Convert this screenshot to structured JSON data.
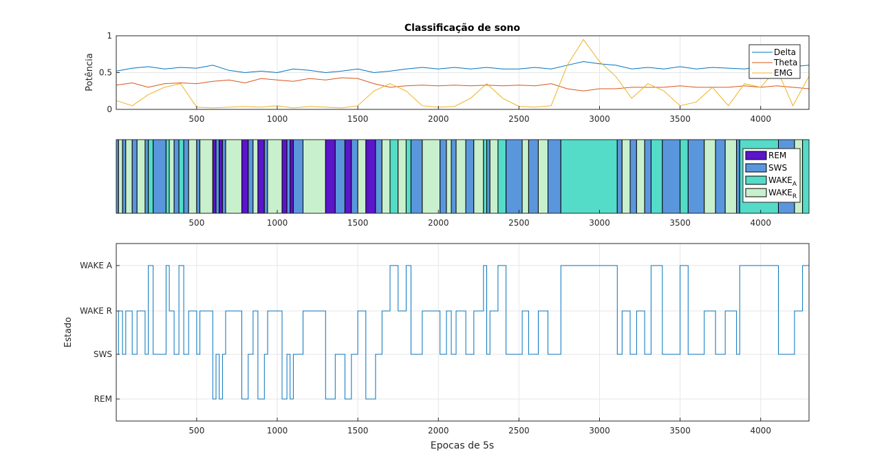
{
  "chart_data": [
    {
      "type": "line",
      "title": "Classificação de sono",
      "ylabel": "Potência",
      "xlabel": "",
      "xlim": [
        1,
        4300
      ],
      "ylim": [
        0,
        1
      ],
      "xticks": [
        500,
        1000,
        1500,
        2000,
        2500,
        3000,
        3500,
        4000
      ],
      "yticks": [
        0,
        0.5,
        1
      ],
      "grid": true,
      "legend_position": "top-right",
      "colors": [
        "#0072bd",
        "#d95319",
        "#edb120"
      ],
      "series": [
        {
          "name": "Delta",
          "x": [
            1,
            100,
            200,
            300,
            400,
            500,
            600,
            700,
            800,
            900,
            1000,
            1100,
            1200,
            1300,
            1400,
            1500,
            1600,
            1700,
            1800,
            1900,
            2000,
            2100,
            2200,
            2300,
            2400,
            2500,
            2600,
            2700,
            2800,
            2900,
            3000,
            3100,
            3200,
            3300,
            3400,
            3500,
            3600,
            3700,
            3800,
            3900,
            4000,
            4100,
            4200,
            4300
          ],
          "y": [
            0.52,
            0.56,
            0.58,
            0.55,
            0.57,
            0.56,
            0.6,
            0.53,
            0.5,
            0.52,
            0.5,
            0.55,
            0.53,
            0.5,
            0.52,
            0.55,
            0.5,
            0.52,
            0.55,
            0.57,
            0.55,
            0.57,
            0.55,
            0.57,
            0.55,
            0.55,
            0.57,
            0.55,
            0.6,
            0.65,
            0.62,
            0.6,
            0.55,
            0.57,
            0.55,
            0.58,
            0.55,
            0.57,
            0.56,
            0.55,
            0.58,
            0.56,
            0.58,
            0.6
          ]
        },
        {
          "name": "Theta",
          "x": [
            1,
            100,
            200,
            300,
            400,
            500,
            600,
            700,
            800,
            900,
            1000,
            1100,
            1200,
            1300,
            1400,
            1500,
            1600,
            1700,
            1800,
            1900,
            2000,
            2100,
            2200,
            2300,
            2400,
            2500,
            2600,
            2700,
            2800,
            2900,
            3000,
            3100,
            3200,
            3300,
            3400,
            3500,
            3600,
            3700,
            3800,
            3900,
            4000,
            4100,
            4200,
            4300
          ],
          "y": [
            0.33,
            0.36,
            0.3,
            0.35,
            0.36,
            0.35,
            0.38,
            0.4,
            0.36,
            0.42,
            0.4,
            0.38,
            0.42,
            0.4,
            0.43,
            0.42,
            0.35,
            0.3,
            0.32,
            0.33,
            0.32,
            0.33,
            0.32,
            0.33,
            0.32,
            0.33,
            0.32,
            0.35,
            0.28,
            0.25,
            0.28,
            0.28,
            0.3,
            0.3,
            0.3,
            0.32,
            0.3,
            0.3,
            0.3,
            0.32,
            0.3,
            0.32,
            0.3,
            0.28
          ]
        },
        {
          "name": "EMG",
          "x": [
            1,
            100,
            200,
            300,
            400,
            500,
            600,
            700,
            800,
            900,
            1000,
            1100,
            1200,
            1300,
            1400,
            1500,
            1600,
            1700,
            1800,
            1900,
            2000,
            2100,
            2200,
            2300,
            2400,
            2500,
            2600,
            2700,
            2800,
            2900,
            3000,
            3100,
            3200,
            3300,
            3400,
            3500,
            3600,
            3700,
            3800,
            3900,
            4000,
            4100,
            4200,
            4300
          ],
          "y": [
            0.12,
            0.05,
            0.2,
            0.3,
            0.35,
            0.03,
            0.02,
            0.03,
            0.04,
            0.03,
            0.05,
            0.02,
            0.04,
            0.03,
            0.02,
            0.05,
            0.25,
            0.35,
            0.25,
            0.05,
            0.03,
            0.04,
            0.15,
            0.35,
            0.15,
            0.04,
            0.03,
            0.05,
            0.6,
            0.95,
            0.65,
            0.45,
            0.15,
            0.35,
            0.25,
            0.05,
            0.1,
            0.3,
            0.05,
            0.35,
            0.3,
            0.55,
            0.05,
            0.45
          ]
        }
      ]
    },
    {
      "type": "bar",
      "xlabel": "",
      "xlim": [
        1,
        4300
      ],
      "xticks": [
        500,
        1000,
        1500,
        2000,
        2500,
        3000,
        3500,
        4000
      ],
      "legend_position": "top-right",
      "legend": [
        {
          "label": "REM",
          "sub": "",
          "color": "#5a16c8"
        },
        {
          "label": "SWS",
          "sub": "",
          "color": "#5a96dc"
        },
        {
          "label": "WAKE",
          "sub": "A",
          "color": "#54dcc8"
        },
        {
          "label": "WAKE",
          "sub": "R",
          "color": "#c8f0cc"
        }
      ],
      "segments": [
        {
          "start": 1,
          "end": 15,
          "state": "SWS"
        },
        {
          "start": 15,
          "end": 40,
          "state": "WAKE R"
        },
        {
          "start": 40,
          "end": 60,
          "state": "SWS"
        },
        {
          "start": 60,
          "end": 100,
          "state": "WAKE R"
        },
        {
          "start": 100,
          "end": 130,
          "state": "SWS"
        },
        {
          "start": 130,
          "end": 180,
          "state": "WAKE R"
        },
        {
          "start": 180,
          "end": 200,
          "state": "SWS"
        },
        {
          "start": 200,
          "end": 230,
          "state": "WAKE A"
        },
        {
          "start": 230,
          "end": 310,
          "state": "SWS"
        },
        {
          "start": 310,
          "end": 330,
          "state": "WAKE A"
        },
        {
          "start": 330,
          "end": 360,
          "state": "WAKE R"
        },
        {
          "start": 360,
          "end": 390,
          "state": "SWS"
        },
        {
          "start": 390,
          "end": 420,
          "state": "WAKE A"
        },
        {
          "start": 420,
          "end": 450,
          "state": "SWS"
        },
        {
          "start": 450,
          "end": 500,
          "state": "WAKE R"
        },
        {
          "start": 500,
          "end": 520,
          "state": "SWS"
        },
        {
          "start": 520,
          "end": 600,
          "state": "WAKE R"
        },
        {
          "start": 600,
          "end": 620,
          "state": "REM"
        },
        {
          "start": 620,
          "end": 640,
          "state": "SWS"
        },
        {
          "start": 640,
          "end": 660,
          "state": "REM"
        },
        {
          "start": 660,
          "end": 680,
          "state": "SWS"
        },
        {
          "start": 680,
          "end": 780,
          "state": "WAKE R"
        },
        {
          "start": 780,
          "end": 820,
          "state": "REM"
        },
        {
          "start": 820,
          "end": 850,
          "state": "SWS"
        },
        {
          "start": 850,
          "end": 880,
          "state": "WAKE R"
        },
        {
          "start": 880,
          "end": 920,
          "state": "REM"
        },
        {
          "start": 920,
          "end": 940,
          "state": "SWS"
        },
        {
          "start": 940,
          "end": 1030,
          "state": "WAKE R"
        },
        {
          "start": 1030,
          "end": 1060,
          "state": "REM"
        },
        {
          "start": 1060,
          "end": 1080,
          "state": "SWS"
        },
        {
          "start": 1080,
          "end": 1100,
          "state": "REM"
        },
        {
          "start": 1100,
          "end": 1160,
          "state": "SWS"
        },
        {
          "start": 1160,
          "end": 1300,
          "state": "WAKE R"
        },
        {
          "start": 1300,
          "end": 1360,
          "state": "REM"
        },
        {
          "start": 1360,
          "end": 1420,
          "state": "SWS"
        },
        {
          "start": 1420,
          "end": 1460,
          "state": "REM"
        },
        {
          "start": 1460,
          "end": 1500,
          "state": "SWS"
        },
        {
          "start": 1500,
          "end": 1550,
          "state": "WAKE R"
        },
        {
          "start": 1550,
          "end": 1610,
          "state": "REM"
        },
        {
          "start": 1610,
          "end": 1650,
          "state": "SWS"
        },
        {
          "start": 1650,
          "end": 1700,
          "state": "WAKE R"
        },
        {
          "start": 1700,
          "end": 1750,
          "state": "WAKE A"
        },
        {
          "start": 1750,
          "end": 1800,
          "state": "WAKE R"
        },
        {
          "start": 1800,
          "end": 1830,
          "state": "WAKE A"
        },
        {
          "start": 1830,
          "end": 1900,
          "state": "SWS"
        },
        {
          "start": 1900,
          "end": 2010,
          "state": "WAKE R"
        },
        {
          "start": 2010,
          "end": 2050,
          "state": "SWS"
        },
        {
          "start": 2050,
          "end": 2080,
          "state": "WAKE R"
        },
        {
          "start": 2080,
          "end": 2110,
          "state": "SWS"
        },
        {
          "start": 2110,
          "end": 2170,
          "state": "WAKE R"
        },
        {
          "start": 2170,
          "end": 2220,
          "state": "SWS"
        },
        {
          "start": 2220,
          "end": 2280,
          "state": "WAKE R"
        },
        {
          "start": 2280,
          "end": 2300,
          "state": "WAKE A"
        },
        {
          "start": 2300,
          "end": 2320,
          "state": "SWS"
        },
        {
          "start": 2320,
          "end": 2370,
          "state": "WAKE R"
        },
        {
          "start": 2370,
          "end": 2420,
          "state": "WAKE A"
        },
        {
          "start": 2420,
          "end": 2520,
          "state": "SWS"
        },
        {
          "start": 2520,
          "end": 2560,
          "state": "WAKE R"
        },
        {
          "start": 2560,
          "end": 2620,
          "state": "SWS"
        },
        {
          "start": 2620,
          "end": 2680,
          "state": "WAKE R"
        },
        {
          "start": 2680,
          "end": 2760,
          "state": "SWS"
        },
        {
          "start": 2760,
          "end": 3110,
          "state": "WAKE A"
        },
        {
          "start": 3110,
          "end": 3140,
          "state": "SWS"
        },
        {
          "start": 3140,
          "end": 3190,
          "state": "WAKE R"
        },
        {
          "start": 3190,
          "end": 3230,
          "state": "SWS"
        },
        {
          "start": 3230,
          "end": 3280,
          "state": "WAKE R"
        },
        {
          "start": 3280,
          "end": 3320,
          "state": "SWS"
        },
        {
          "start": 3320,
          "end": 3390,
          "state": "WAKE A"
        },
        {
          "start": 3390,
          "end": 3500,
          "state": "SWS"
        },
        {
          "start": 3500,
          "end": 3550,
          "state": "WAKE A"
        },
        {
          "start": 3550,
          "end": 3650,
          "state": "SWS"
        },
        {
          "start": 3650,
          "end": 3720,
          "state": "WAKE R"
        },
        {
          "start": 3720,
          "end": 3780,
          "state": "SWS"
        },
        {
          "start": 3780,
          "end": 3850,
          "state": "WAKE R"
        },
        {
          "start": 3850,
          "end": 3870,
          "state": "SWS"
        },
        {
          "start": 3870,
          "end": 4110,
          "state": "WAKE A"
        },
        {
          "start": 4110,
          "end": 4210,
          "state": "SWS"
        },
        {
          "start": 4210,
          "end": 4260,
          "state": "WAKE R"
        },
        {
          "start": 4260,
          "end": 4300,
          "state": "WAKE A"
        }
      ]
    },
    {
      "type": "line",
      "xlabel": "Epocas de 5s",
      "ylabel": "Estado",
      "xlim": [
        1,
        4300
      ],
      "xticks": [
        500,
        1000,
        1500,
        2000,
        2500,
        3000,
        3500,
        4000
      ],
      "yticks": [
        "REM",
        "SWS",
        "WAKE R",
        "WAKE A"
      ],
      "grid": true,
      "color": "#0072bd",
      "series": [
        {
          "x": [
            1,
            15,
            40,
            60,
            100,
            130,
            180,
            200,
            230,
            310,
            330,
            360,
            390,
            420,
            450,
            500,
            520,
            600,
            620,
            640,
            660,
            680,
            780,
            820,
            850,
            880,
            920,
            940,
            1030,
            1060,
            1080,
            1100,
            1160,
            1300,
            1360,
            1420,
            1460,
            1500,
            1550,
            1610,
            1650,
            1700,
            1750,
            1800,
            1830,
            1900,
            2010,
            2050,
            2080,
            2110,
            2170,
            2220,
            2280,
            2300,
            2320,
            2370,
            2420,
            2520,
            2560,
            2620,
            2680,
            2760,
            3110,
            3140,
            3190,
            3230,
            3280,
            3320,
            3390,
            3500,
            3550,
            3650,
            3720,
            3780,
            3850,
            3870,
            4110,
            4210,
            4260
          ],
          "y": [
            "SWS",
            "WAKE R",
            "SWS",
            "WAKE R",
            "SWS",
            "WAKE R",
            "SWS",
            "WAKE A",
            "SWS",
            "WAKE A",
            "WAKE R",
            "SWS",
            "WAKE A",
            "SWS",
            "WAKE R",
            "SWS",
            "WAKE R",
            "REM",
            "SWS",
            "REM",
            "SWS",
            "WAKE R",
            "REM",
            "SWS",
            "WAKE R",
            "REM",
            "SWS",
            "WAKE R",
            "REM",
            "SWS",
            "REM",
            "SWS",
            "WAKE R",
            "REM",
            "SWS",
            "REM",
            "SWS",
            "WAKE R",
            "REM",
            "SWS",
            "WAKE R",
            "WAKE A",
            "WAKE R",
            "WAKE A",
            "SWS",
            "WAKE R",
            "SWS",
            "WAKE R",
            "SWS",
            "WAKE R",
            "SWS",
            "WAKE R",
            "WAKE A",
            "SWS",
            "WAKE R",
            "WAKE A",
            "SWS",
            "WAKE R",
            "SWS",
            "WAKE R",
            "SWS",
            "WAKE A",
            "SWS",
            "WAKE R",
            "SWS",
            "WAKE R",
            "SWS",
            "WAKE A",
            "SWS",
            "WAKE A",
            "SWS",
            "WAKE R",
            "SWS",
            "WAKE R",
            "SWS",
            "WAKE A",
            "SWS",
            "WAKE R",
            "WAKE A"
          ]
        }
      ]
    }
  ]
}
